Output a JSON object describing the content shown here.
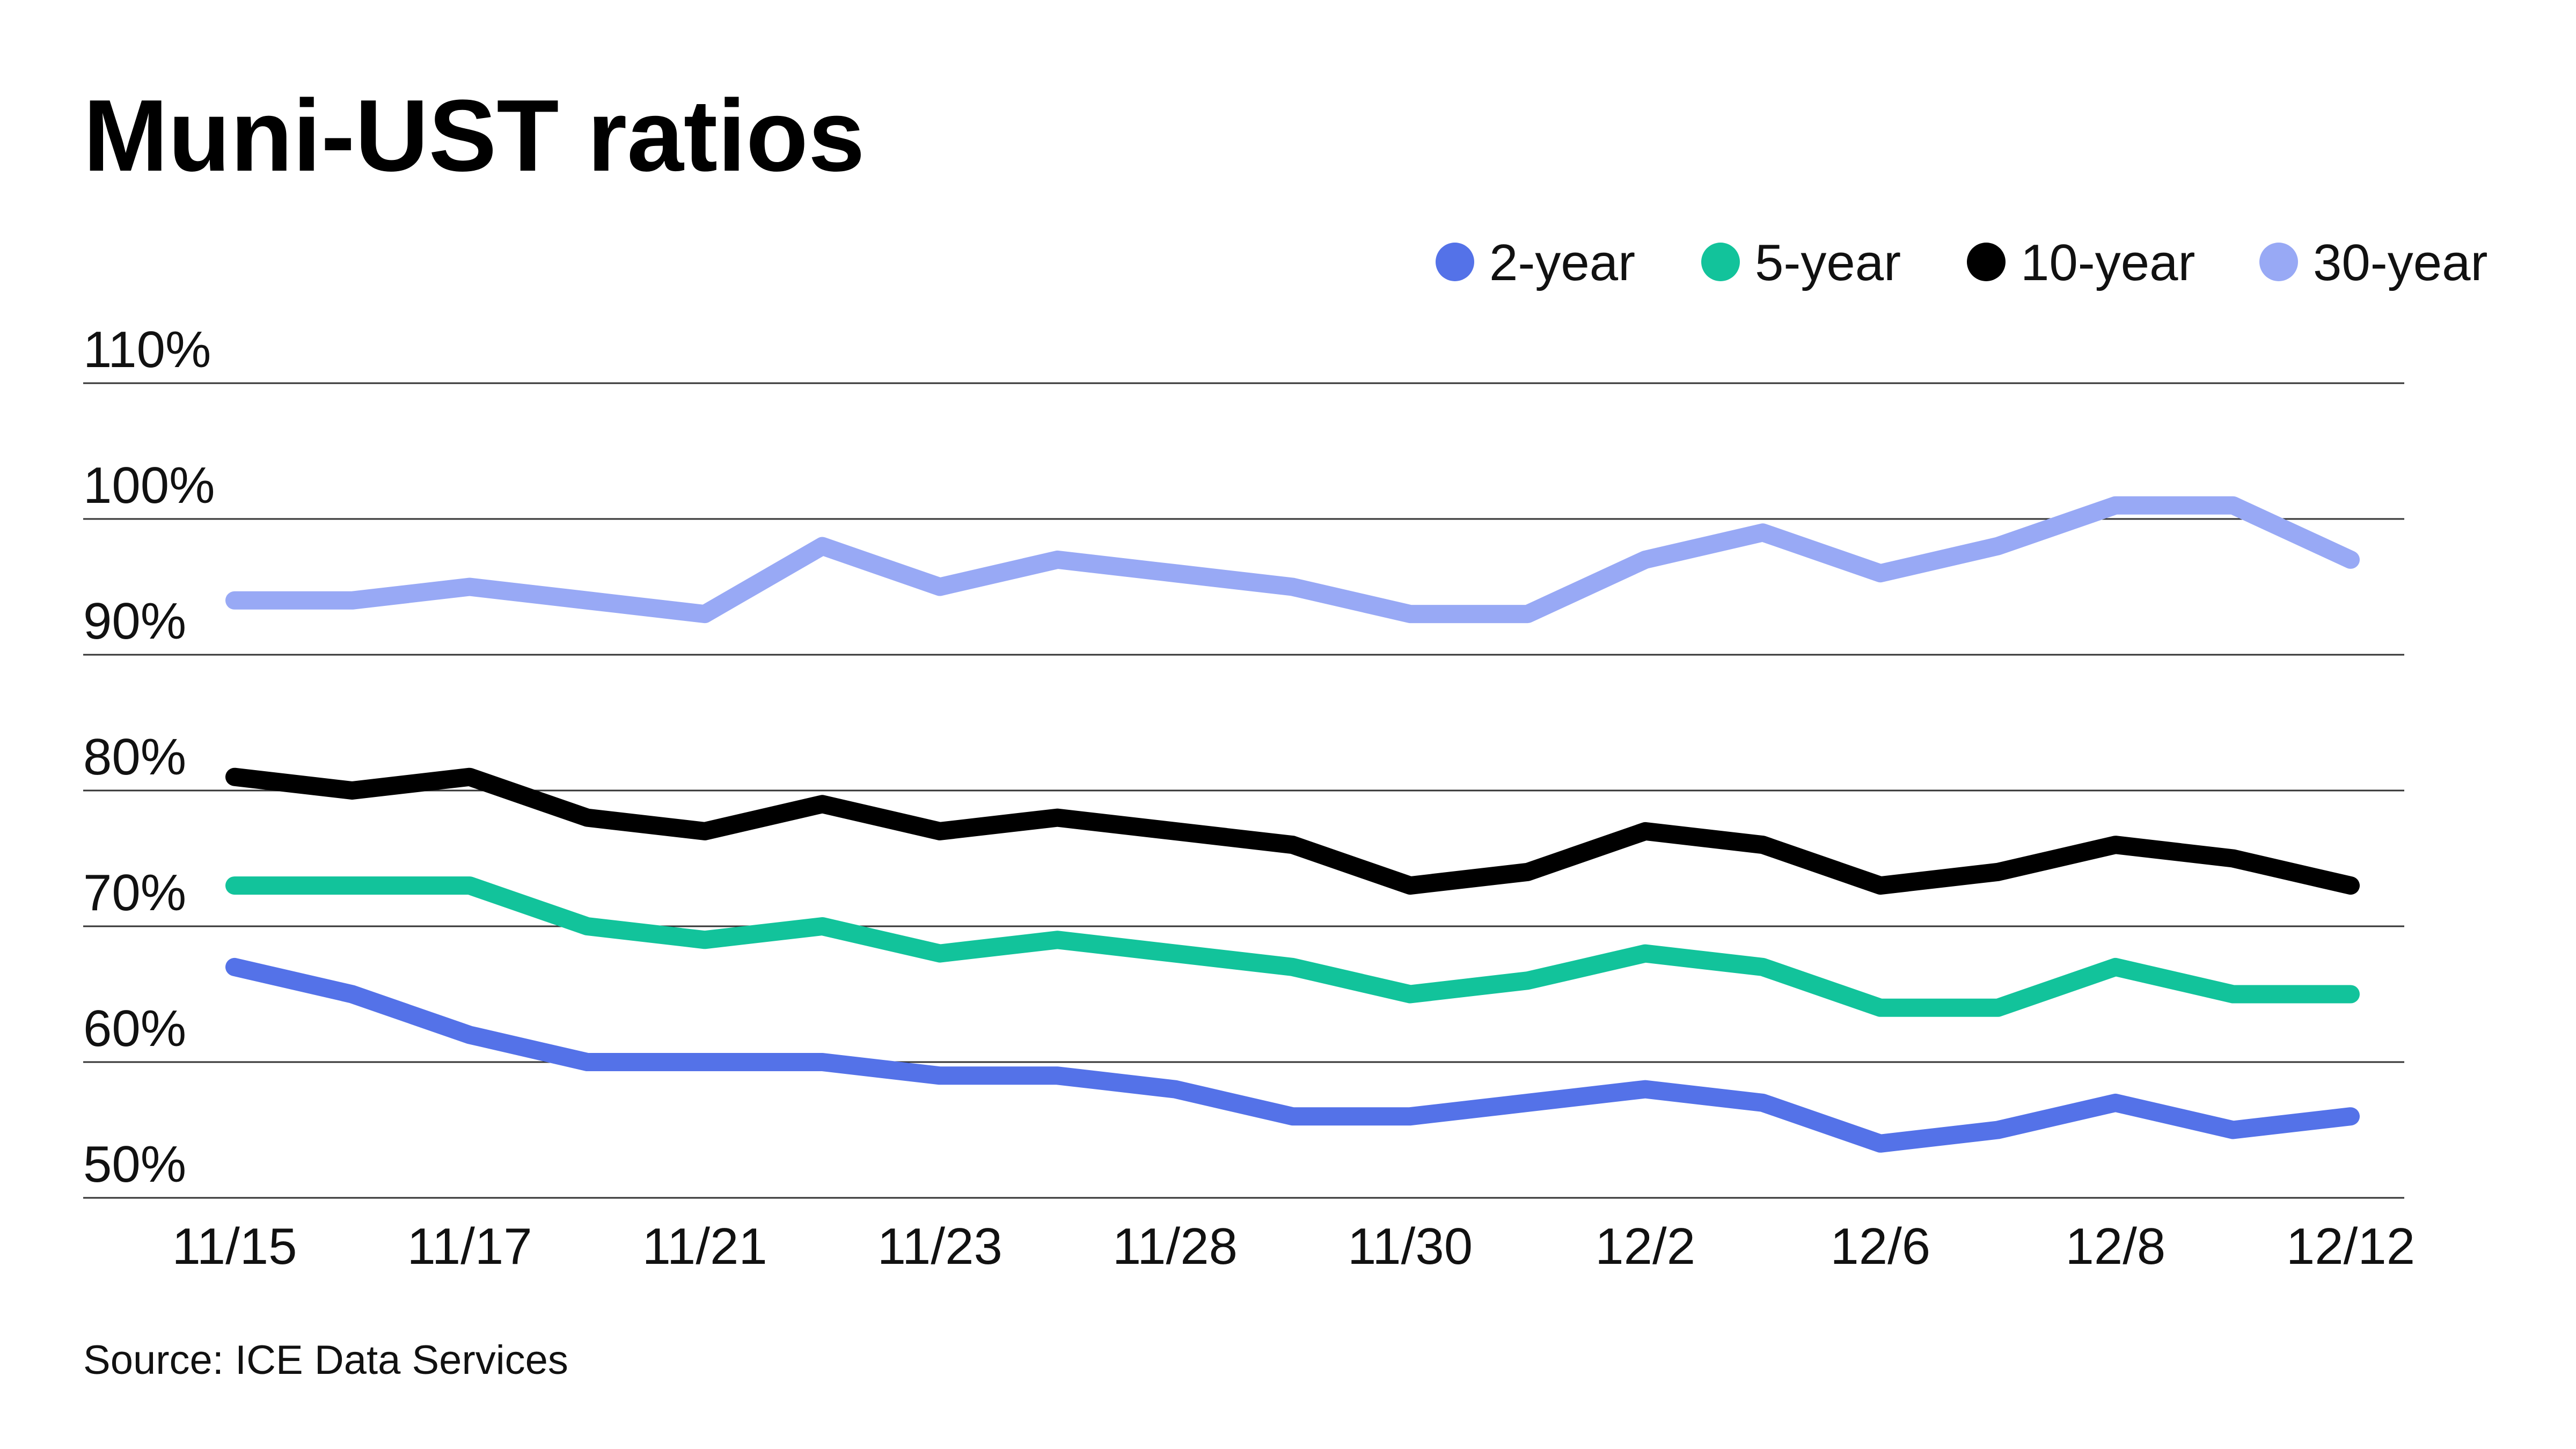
{
  "chart_data": {
    "type": "line",
    "title": "Muni-UST ratios",
    "source": "Source: ICE Data Services",
    "y_unit": "%",
    "ylim": [
      50,
      110
    ],
    "yticks": [
      110,
      100,
      90,
      80,
      70,
      60,
      50
    ],
    "ytick_labels": [
      "110%",
      "100%",
      "90%",
      "80%",
      "70%",
      "60%",
      "50%"
    ],
    "grid": true,
    "legend_position": "top-right",
    "x_tick_labels": [
      "11/15",
      "11/17",
      "11/21",
      "11/23",
      "11/28",
      "11/30",
      "12/2",
      "12/6",
      "12/8",
      "12/12"
    ],
    "x_tick_positions": [
      0,
      2,
      4,
      6,
      8,
      10,
      12,
      14,
      16,
      18
    ],
    "series": [
      {
        "name": "2-year",
        "color": "#5472e8",
        "values": [
          67,
          65,
          62,
          60,
          60,
          60,
          59,
          59,
          58,
          56,
          56,
          57,
          58,
          57,
          54,
          55,
          57,
          55,
          56
        ]
      },
      {
        "name": "5-year",
        "color": "#12c39b",
        "values": [
          73,
          73,
          73,
          70,
          69,
          70,
          68,
          69,
          68,
          67,
          65,
          66,
          68,
          67,
          64,
          64,
          67,
          65,
          65
        ]
      },
      {
        "name": "10-year",
        "color": "#000000",
        "values": [
          81,
          80,
          81,
          78,
          77,
          79,
          77,
          78,
          77,
          76,
          73,
          74,
          77,
          76,
          73,
          74,
          76,
          75,
          73
        ]
      },
      {
        "name": "30-year",
        "color": "#98a9f5",
        "values": [
          94,
          94,
          95,
          94,
          93,
          98,
          95,
          97,
          96,
          95,
          93,
          93,
          97,
          99,
          96,
          98,
          101,
          101,
          97
        ]
      }
    ]
  }
}
